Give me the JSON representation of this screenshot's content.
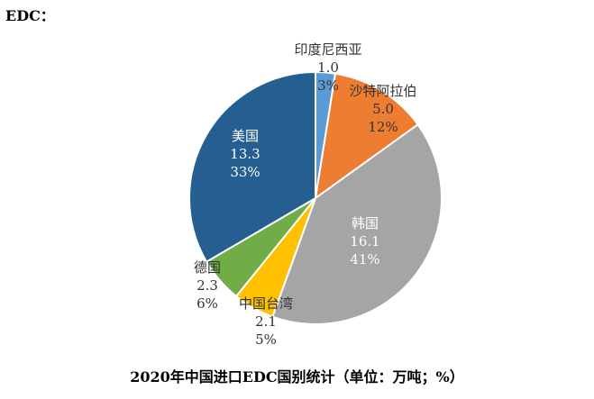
{
  "heading": "EDC：",
  "chart_data": {
    "type": "pie",
    "title": "2020年中国进口EDC国别统计（单位：万吨；%）",
    "slices": [
      {
        "label": "印度尼西亚",
        "value": 1.0,
        "percent": "3%",
        "color": "#5b9bd5",
        "label_color": "#333333"
      },
      {
        "label": "沙特阿拉伯",
        "value": 5.0,
        "percent": "12%",
        "color": "#ed7d31",
        "label_color": "#333333"
      },
      {
        "label": "韩国",
        "value": 16.1,
        "percent": "41%",
        "color": "#a5a5a5",
        "label_color": "#ffffff"
      },
      {
        "label": "中国台湾",
        "value": 2.1,
        "percent": "5%",
        "color": "#ffc000",
        "label_color": "#333333"
      },
      {
        "label": "德国",
        "value": 2.3,
        "percent": "6%",
        "color": "#70ad47",
        "label_color": "#333333"
      },
      {
        "label": "美国",
        "value": 13.3,
        "percent": "33%",
        "color": "#255e91",
        "label_color": "#ffffff"
      }
    ]
  }
}
